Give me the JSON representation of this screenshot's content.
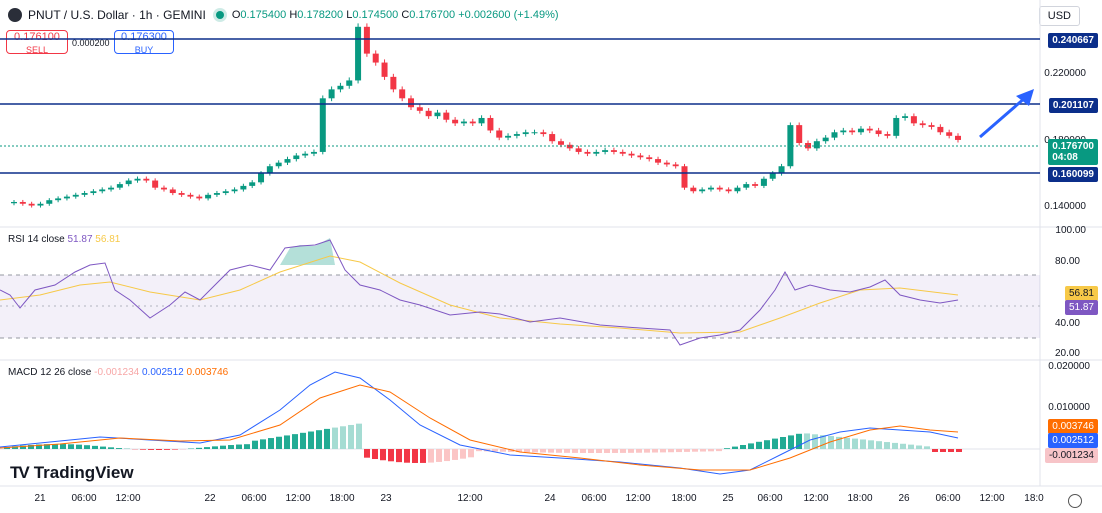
{
  "header": {
    "title": "PNUT / U.S. Dollar · 1h · GEMINI",
    "ohlc": {
      "o_label": "O",
      "o": "0.175400",
      "h_label": "H",
      "h": "0.178200",
      "l_label": "L",
      "l": "0.174500",
      "c_label": "C",
      "c": "0.176700",
      "change": "+0.002600 (+1.49%)"
    },
    "currency": "USD"
  },
  "trade": {
    "sell_price": "0.176100",
    "sell_label": "SELL",
    "spread": "0.000200",
    "buy_price": "0.176300",
    "buy_label": "BUY"
  },
  "price_axis": {
    "ticks": [
      "0.220000",
      "0.180000",
      "0.140000"
    ],
    "tags": {
      "level1": "0.240667",
      "level2": "0.201107",
      "current": "0.176700",
      "countdown": "04:08",
      "level3": "0.160099"
    },
    "colors": {
      "level": "#0b2e8a",
      "current": "#089981",
      "up": "#089981",
      "down": "#f23645"
    }
  },
  "rsi": {
    "title": "RSI 14 close",
    "rsi_value": "51.87",
    "ma_value": "56.81",
    "ticks": [
      "100.00",
      "80.00",
      "40.00",
      "20.00"
    ]
  },
  "macd": {
    "title": "MACD 12 26 close",
    "hist_value": "-0.001234",
    "macd_value": "0.002512",
    "signal_value": "0.003746",
    "ticks": [
      "0.020000",
      "0.010000"
    ]
  },
  "brand": {
    "name": "TradingView",
    "mark": "TV"
  },
  "time_axis": [
    "21",
    "06:00",
    "12:00",
    "22",
    "06:00",
    "12:00",
    "18:00",
    "23",
    "12:00",
    "24",
    "06:00",
    "12:00",
    "18:00",
    "25",
    "06:00",
    "12:00",
    "18:00",
    "26",
    "06:00",
    "12:00",
    "18:0"
  ],
  "chart_data": {
    "type": "candlestick",
    "candles_close": [
      0.142,
      0.141,
      0.14,
      0.141,
      0.143,
      0.144,
      0.145,
      0.146,
      0.147,
      0.148,
      0.149,
      0.15,
      0.152,
      0.154,
      0.155,
      0.154,
      0.15,
      0.149,
      0.147,
      0.146,
      0.145,
      0.144,
      0.146,
      0.147,
      0.148,
      0.149,
      0.151,
      0.153,
      0.158,
      0.162,
      0.164,
      0.166,
      0.168,
      0.169,
      0.17,
      0.2,
      0.205,
      0.207,
      0.21,
      0.24,
      0.225,
      0.22,
      0.212,
      0.205,
      0.2,
      0.195,
      0.193,
      0.19,
      0.192,
      0.188,
      0.186,
      0.187,
      0.186,
      0.189,
      0.182,
      0.178,
      0.179,
      0.18,
      0.181,
      0.181,
      0.18,
      0.176,
      0.174,
      0.172,
      0.17,
      0.169,
      0.17,
      0.171,
      0.17,
      0.169,
      0.168,
      0.167,
      0.166,
      0.164,
      0.163,
      0.162,
      0.15,
      0.148,
      0.149,
      0.15,
      0.149,
      0.148,
      0.15,
      0.152,
      0.151,
      0.155,
      0.158,
      0.162,
      0.185,
      0.175,
      0.172,
      0.176,
      0.178,
      0.181,
      0.182,
      0.181,
      0.183,
      0.182,
      0.18,
      0.179,
      0.189,
      0.19,
      0.186,
      0.185,
      0.184,
      0.181,
      0.179,
      0.1767
    ],
    "horizontal_levels": [
      0.240667,
      0.201107,
      0.160099
    ],
    "ylim": [
      0.128,
      0.255
    ]
  }
}
